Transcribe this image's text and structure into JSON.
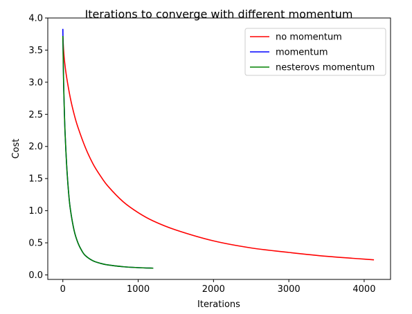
{
  "chart_data": {
    "type": "line",
    "title": "Iterations to converge with different momentum",
    "xlabel": "Iterations",
    "ylabel": "Cost",
    "xlim": [
      -200,
      4350
    ],
    "ylim": [
      -0.07,
      4.0
    ],
    "xticks": [
      0,
      1000,
      2000,
      3000,
      4000
    ],
    "xtick_labels": [
      "0",
      "1000",
      "2000",
      "3000",
      "4000"
    ],
    "yticks": [
      0.0,
      0.5,
      1.0,
      1.5,
      2.0,
      2.5,
      3.0,
      3.5,
      4.0
    ],
    "ytick_labels": [
      "0.0",
      "0.5",
      "1.0",
      "1.5",
      "2.0",
      "2.5",
      "3.0",
      "3.5",
      "4.0"
    ],
    "grid": false,
    "legend_position": "top-right",
    "series": [
      {
        "name": "no momentum",
        "color": "#ff0000",
        "x": [
          0,
          10,
          25,
          50,
          100,
          150,
          200,
          300,
          400,
          500,
          600,
          800,
          1000,
          1200,
          1500,
          2000,
          2500,
          3000,
          3500,
          4130
        ],
        "y": [
          3.72,
          3.5,
          3.3,
          3.08,
          2.75,
          2.5,
          2.3,
          1.98,
          1.73,
          1.54,
          1.38,
          1.14,
          0.97,
          0.84,
          0.7,
          0.53,
          0.42,
          0.35,
          0.29,
          0.235
        ]
      },
      {
        "name": "momentum",
        "color": "#0000ff",
        "x": [
          0,
          5,
          10,
          20,
          30,
          50,
          75,
          100,
          150,
          200,
          250,
          300,
          400,
          500,
          600,
          800,
          1000,
          1200
        ],
        "y": [
          3.83,
          3.4,
          3.0,
          2.55,
          2.2,
          1.72,
          1.3,
          1.02,
          0.69,
          0.5,
          0.38,
          0.3,
          0.22,
          0.18,
          0.155,
          0.128,
          0.113,
          0.105
        ]
      },
      {
        "name": "nesterovs momentum",
        "color": "#008000",
        "x": [
          0,
          5,
          10,
          20,
          30,
          50,
          75,
          100,
          150,
          200,
          250,
          300,
          400,
          500,
          600,
          800,
          1000,
          1200
        ],
        "y": [
          3.72,
          3.35,
          3.0,
          2.55,
          2.2,
          1.72,
          1.3,
          1.02,
          0.69,
          0.5,
          0.38,
          0.3,
          0.22,
          0.18,
          0.155,
          0.128,
          0.113,
          0.105
        ]
      }
    ]
  }
}
